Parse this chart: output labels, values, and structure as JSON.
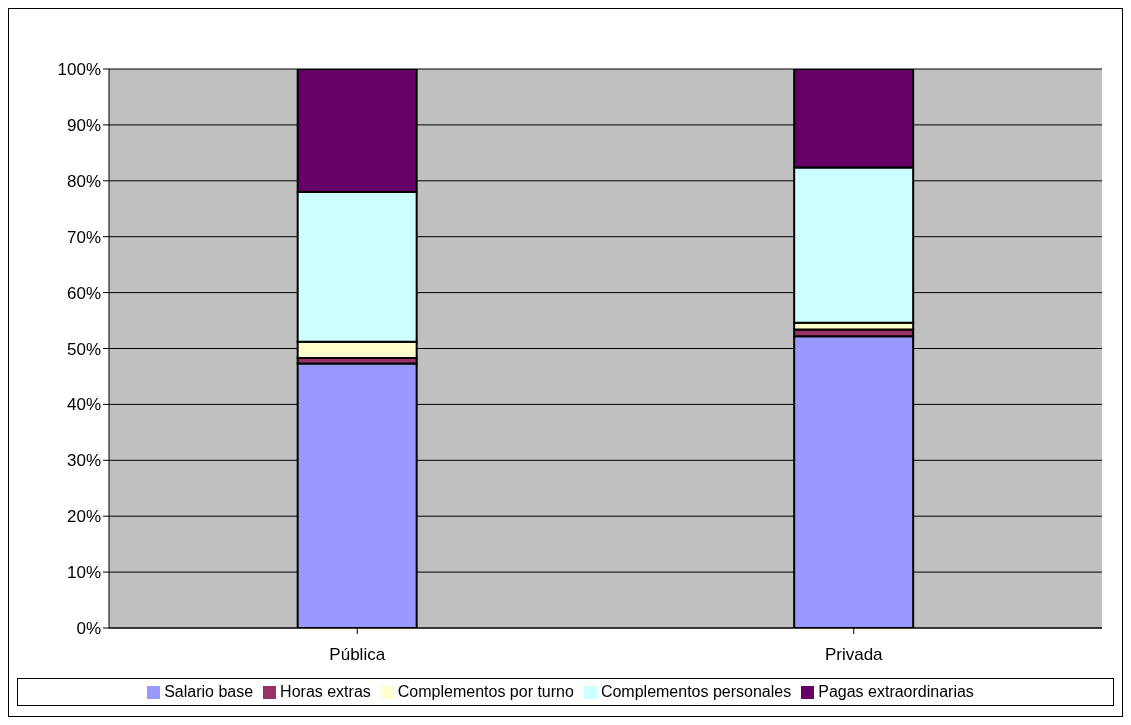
{
  "chart_data": {
    "type": "bar",
    "stacked": true,
    "categories": [
      "Pública",
      "Privada"
    ],
    "series": [
      {
        "name": "Salario base",
        "color": "#9999ff",
        "values": [
          47.3,
          52.2
        ]
      },
      {
        "name": "Horas extras",
        "color": "#993366",
        "values": [
          1.0,
          1.2
        ]
      },
      {
        "name": "Complementos por turno",
        "color": "#ffffcc",
        "values": [
          2.9,
          1.2
        ]
      },
      {
        "name": "Complementos personales",
        "color": "#ccffff",
        "values": [
          26.8,
          27.8
        ]
      },
      {
        "name": "Pagas extraordinarias",
        "color": "#660066",
        "values": [
          22.0,
          17.6
        ]
      }
    ],
    "ylim": [
      0,
      100
    ],
    "yticks": [
      {
        "value": 0,
        "label": "0%"
      },
      {
        "value": 10,
        "label": "10%"
      },
      {
        "value": 20,
        "label": "20%"
      },
      {
        "value": 30,
        "label": "30%"
      },
      {
        "value": 40,
        "label": "40%"
      },
      {
        "value": 50,
        "label": "50%"
      },
      {
        "value": 60,
        "label": "60%"
      },
      {
        "value": 70,
        "label": "70%"
      },
      {
        "value": 80,
        "label": "80%"
      },
      {
        "value": 90,
        "label": "90%"
      },
      {
        "value": 100,
        "label": "100%"
      }
    ],
    "grid": "y",
    "legend": "bottom"
  }
}
